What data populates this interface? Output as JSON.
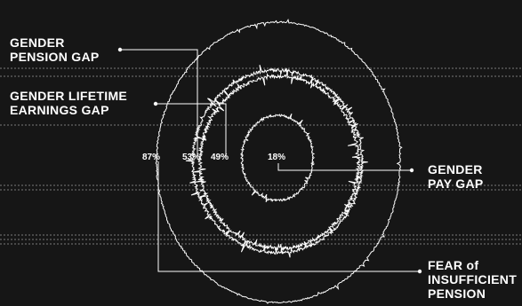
{
  "colors": {
    "background": "#161616",
    "foreground": "#ffffff",
    "guide": "#bdbdbd"
  },
  "labels": {
    "pension_gap": [
      "GENDER",
      "PENSION GAP"
    ],
    "lifetime_gap": [
      "GENDER LIFETIME",
      "EARNINGS GAP"
    ],
    "pay_gap": [
      "GENDER",
      "PAY GAP"
    ],
    "fear": [
      "FEAR of",
      "INSUFFICIENT",
      "PENSION"
    ]
  },
  "percentages": {
    "fear": "87%",
    "pension_gap": "53%",
    "lifetime_gap": "49%",
    "pay_gap": "18%"
  }
}
